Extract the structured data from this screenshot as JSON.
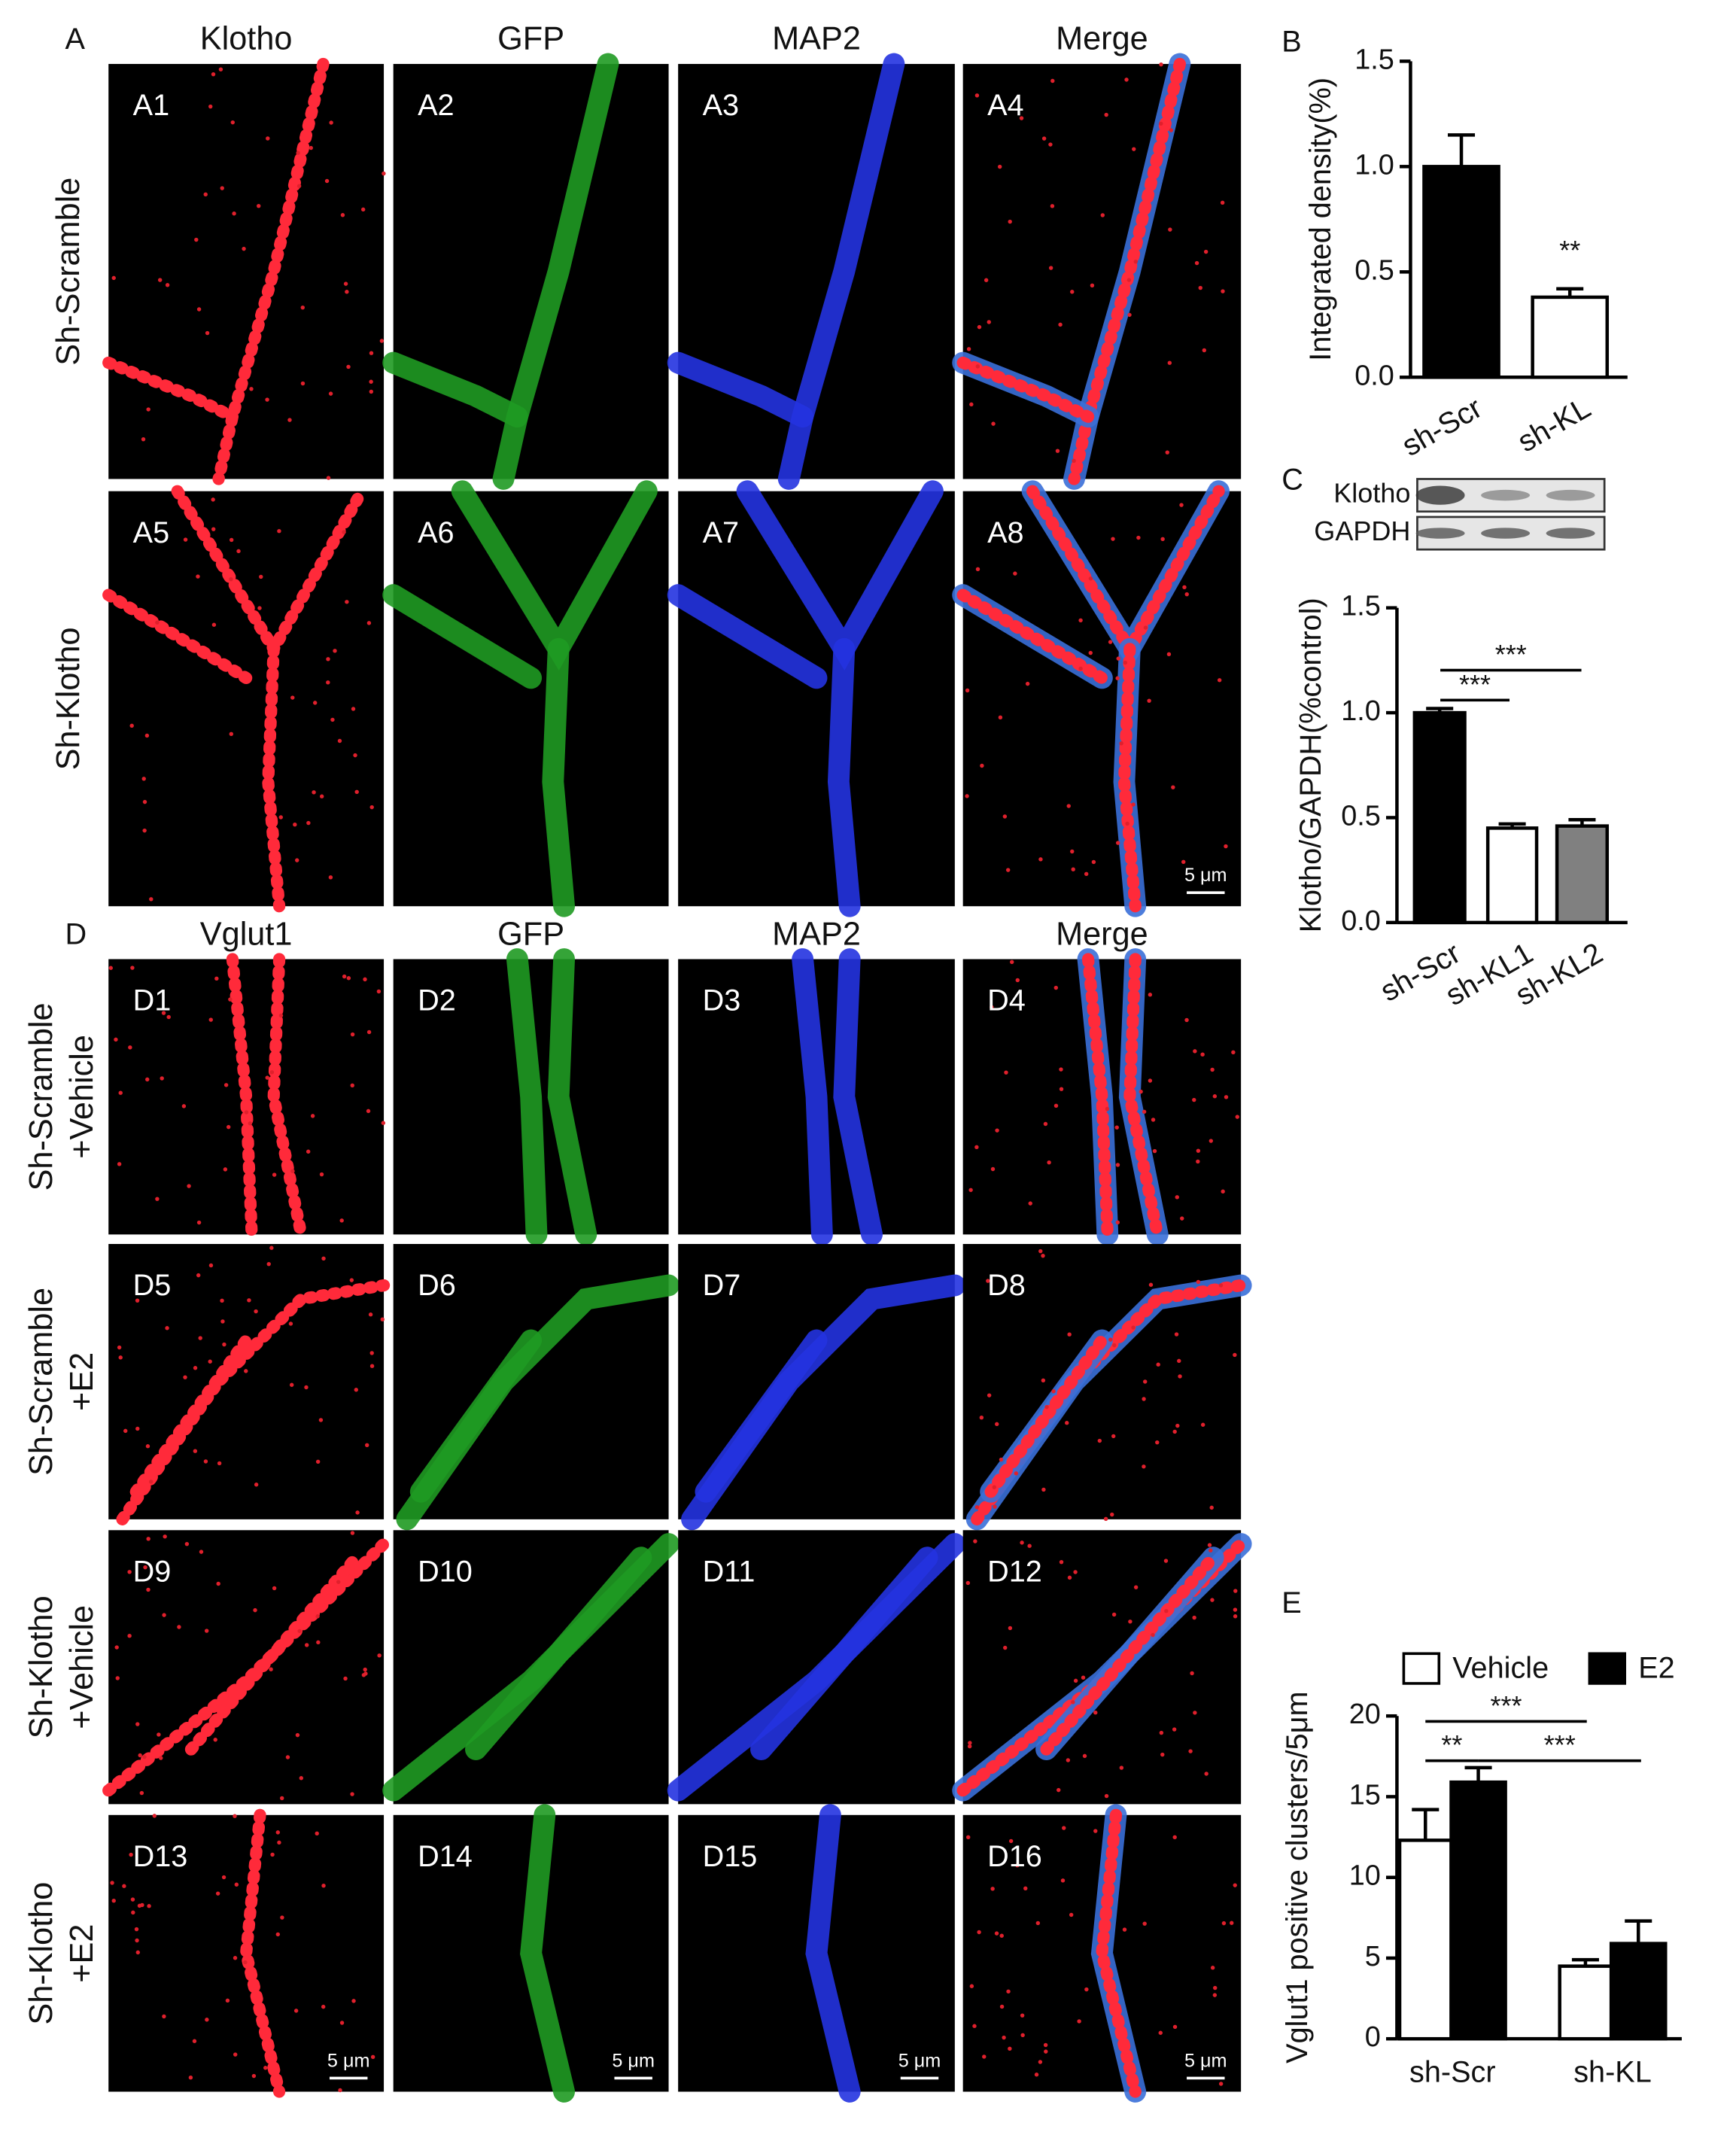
{
  "figure": {
    "panel_a": {
      "label": "A",
      "columns": [
        "Klotho",
        "GFP",
        "MAP2",
        "Merge"
      ],
      "rows": [
        "Sh-Scramble",
        "Sh-Klotho"
      ],
      "tiles": [
        "A1",
        "A2",
        "A3",
        "A4",
        "A5",
        "A6",
        "A7",
        "A8"
      ],
      "scale_bar": "5 μm"
    },
    "panel_d": {
      "label": "D",
      "columns": [
        "Vglut1",
        "GFP",
        "MAP2",
        "Merge"
      ],
      "rows": [
        [
          "Sh-Scramble",
          "+Vehicle"
        ],
        [
          "Sh-Scramble",
          "+E2"
        ],
        [
          "Sh-Klotho",
          "+Vehicle"
        ],
        [
          "Sh-Klotho",
          "+E2"
        ]
      ],
      "tiles": [
        "D1",
        "D2",
        "D3",
        "D4",
        "D5",
        "D6",
        "D7",
        "D8",
        "D9",
        "D10",
        "D11",
        "D12",
        "D13",
        "D14",
        "D15",
        "D16"
      ],
      "scale_bars": [
        "5 μm",
        "5 μm",
        "5 μm",
        "5 μm"
      ]
    }
  },
  "chart_data": [
    {
      "type": "bar",
      "panel_label": "B",
      "y_label": "Integrated density(%)",
      "categories": [
        "sh-Scr",
        "sh-KL"
      ],
      "values": [
        1.0,
        0.38
      ],
      "errors": [
        0.15,
        0.04
      ],
      "colors": [
        "#000000",
        "#ffffff"
      ],
      "ylim": [
        0,
        1.5
      ],
      "yticks": [
        {
          "value": 0,
          "label": "0.0"
        },
        0.5,
        {
          "value": 1,
          "label": "1.0"
        },
        1.5
      ],
      "annotations": [
        "**"
      ]
    },
    {
      "type": "bar",
      "panel_label": "C",
      "blot_labels": [
        "Klotho",
        "GAPDH"
      ],
      "y_label": "Klotho/GAPDH(%control)",
      "categories": [
        "sh-Scr",
        "sh-KL1",
        "sh-KL2"
      ],
      "values": [
        1.0,
        0.45,
        0.46
      ],
      "errors": [
        0.02,
        0.02,
        0.03
      ],
      "colors": [
        "#000000",
        "#ffffff",
        "#808080"
      ],
      "ylim": [
        0,
        1.5
      ],
      "yticks": [
        {
          "value": 0,
          "label": "0.0"
        },
        0.5,
        {
          "value": 1,
          "label": "1.0"
        },
        1.5
      ],
      "annotations": [
        "***",
        "***"
      ]
    },
    {
      "type": "grouped_bar",
      "panel_label": "E",
      "y_label": "Vglut1 positive clusters/5μm",
      "categories": [
        "sh-Scr",
        "sh-KL"
      ],
      "series": [
        {
          "name": "Vehicle",
          "color": "#ffffff",
          "values": [
            12.3,
            4.5
          ],
          "errors": [
            1.9,
            0.4
          ]
        },
        {
          "name": "E2",
          "color": "#000000",
          "values": [
            15.9,
            5.9
          ],
          "errors": [
            0.9,
            1.4
          ]
        }
      ],
      "ylim": [
        0,
        20
      ],
      "yticks": [
        0,
        5,
        10,
        15,
        20
      ],
      "annotations": [
        "***",
        "**",
        "***"
      ]
    }
  ]
}
